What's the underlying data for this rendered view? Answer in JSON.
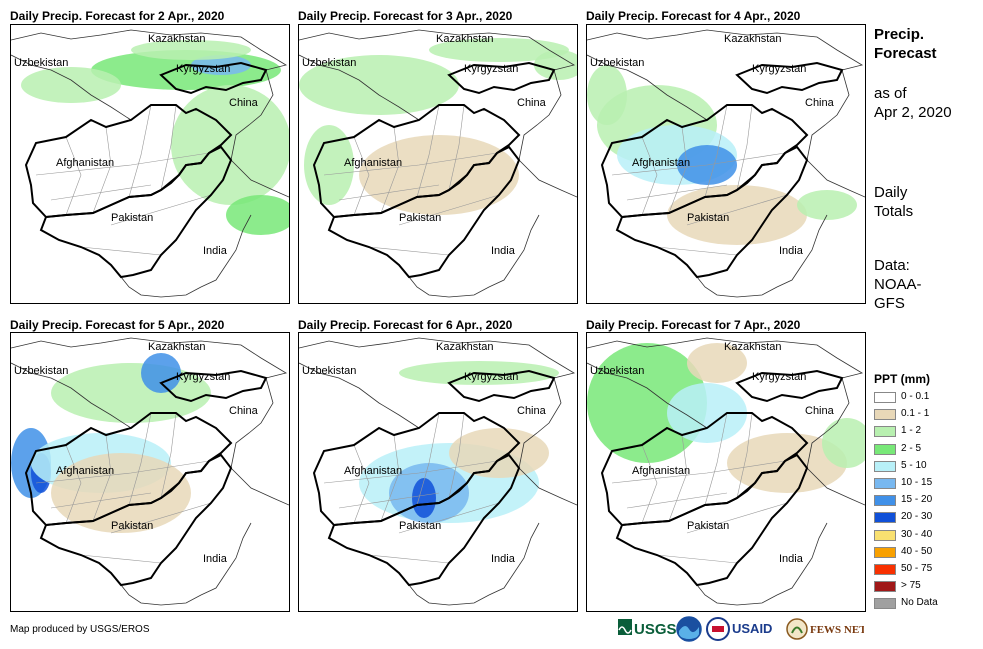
{
  "panels": [
    {
      "title": "Daily Precip. Forecast for 2 Apr., 2020"
    },
    {
      "title": "Daily Precip. Forecast for 3 Apr., 2020"
    },
    {
      "title": "Daily Precip. Forecast for 4 Apr., 2020"
    },
    {
      "title": "Daily Precip. Forecast for 5 Apr., 2020"
    },
    {
      "title": "Daily Precip. Forecast for 6 Apr., 2020"
    },
    {
      "title": "Daily Precip. Forecast for 7 Apr., 2020"
    }
  ],
  "countries": {
    "kazakhstan": "Kazakhstan",
    "uzbekistan": "Uzbekistan",
    "kyrgyzstan": "Kyrgyzstan",
    "china": "China",
    "afghanistan": "Afghanistan",
    "pakistan": "Pakistan",
    "india": "India"
  },
  "sidebar": {
    "title_line1": "Precip.",
    "title_line2": "Forecast",
    "asof_line1": "as of",
    "asof_line2": "Apr 2, 2020",
    "totals_line1": "Daily",
    "totals_line2": "Totals",
    "data_line1": "Data:",
    "data_line2": "NOAA-",
    "data_line3": "GFS"
  },
  "legend": {
    "title": "PPT (mm)",
    "items": [
      {
        "label": "0 - 0.1",
        "color": "#ffffff"
      },
      {
        "label": "0.1 - 1",
        "color": "#e8d8b8"
      },
      {
        "label": "1 - 2",
        "color": "#b8f0b0"
      },
      {
        "label": "2 - 5",
        "color": "#78e878"
      },
      {
        "label": "5 - 10",
        "color": "#b8f0f8"
      },
      {
        "label": "10 - 15",
        "color": "#78b8f0"
      },
      {
        "label": "15 - 20",
        "color": "#4090e8"
      },
      {
        "label": "20 - 30",
        "color": "#1050d8"
      },
      {
        "label": "30 - 40",
        "color": "#f8e070"
      },
      {
        "label": "40 - 50",
        "color": "#f8a000"
      },
      {
        "label": "50 - 75",
        "color": "#f83000"
      },
      {
        "label": "> 75",
        "color": "#a01818"
      },
      {
        "label": "No Data",
        "color": "#a0a0a0"
      }
    ]
  },
  "credit": "Map produced by USGS/EROS",
  "logos": {
    "usgs": "USGS",
    "usaid": "USAID",
    "fewsnet": "FEWS NET"
  }
}
